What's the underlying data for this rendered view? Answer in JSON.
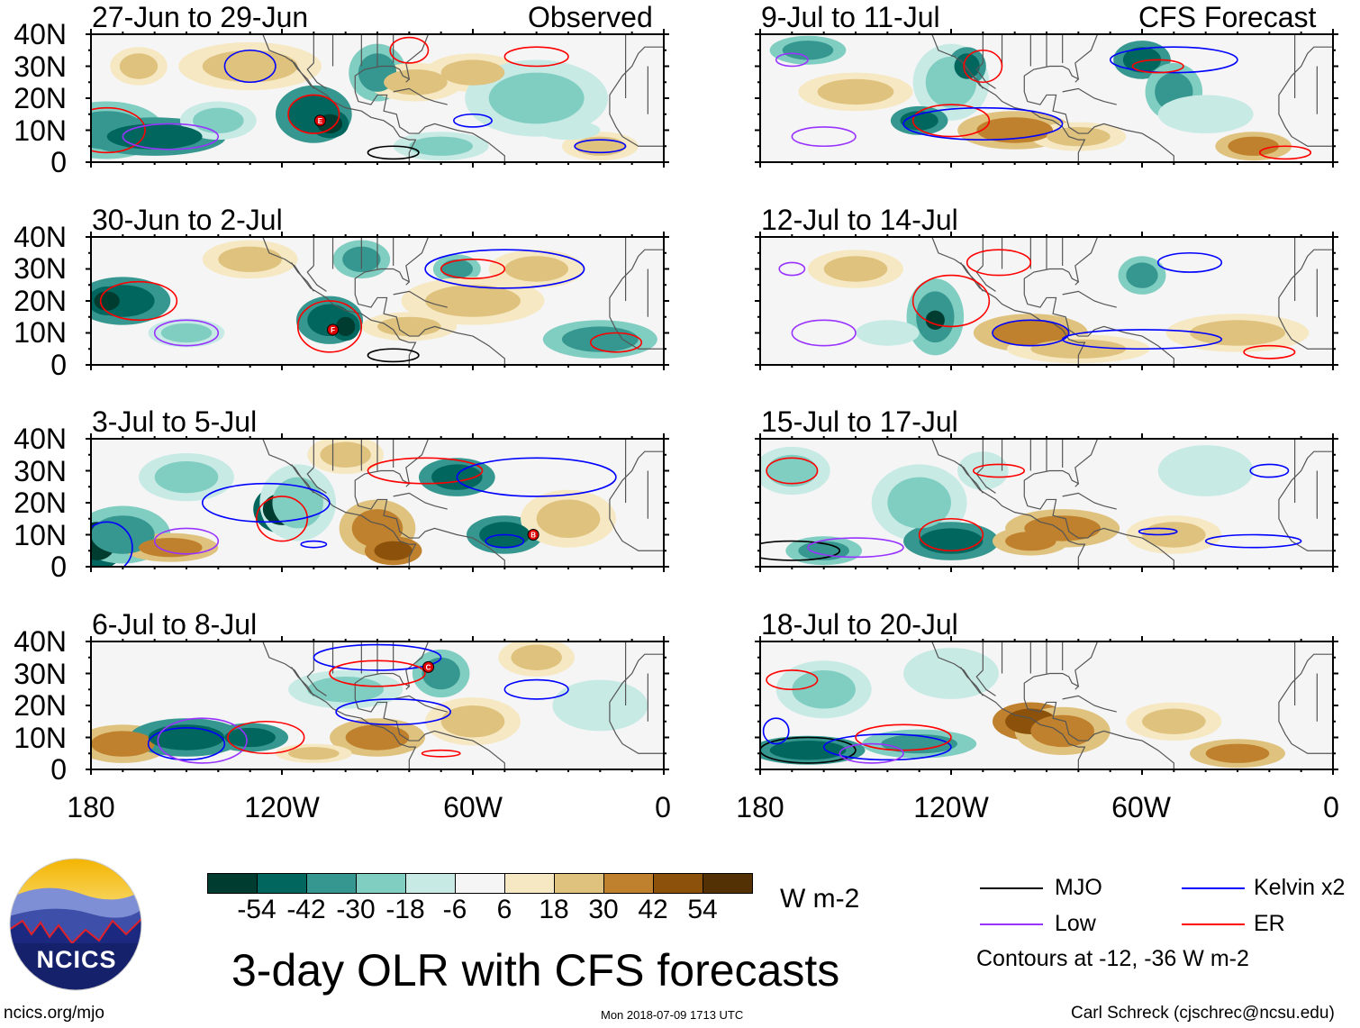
{
  "title": "3-day OLR with CFS forecasts",
  "observed_label": "Observed",
  "forecast_label": "CFS Forecast",
  "panels_left": [
    "27-Jun to 29-Jun",
    "30-Jun to 2-Jul",
    "3-Jul to 5-Jul",
    "6-Jul to 8-Jul"
  ],
  "panels_right": [
    "9-Jul to 11-Jul",
    "12-Jul to 14-Jul",
    "15-Jul to 17-Jul",
    "18-Jul to 20-Jul"
  ],
  "y_ticks": [
    "40N",
    "30N",
    "20N",
    "10N",
    "0"
  ],
  "x_ticks": [
    "180",
    "120W",
    "60W",
    "0"
  ],
  "storm_markers": [
    "E",
    "F",
    "B",
    "C"
  ],
  "colorbar": {
    "unit": "W m-2",
    "labels": [
      "-54",
      "-42",
      "-30",
      "-18",
      "-6",
      "6",
      "18",
      "30",
      "42",
      "54"
    ],
    "colors": [
      "#003c30",
      "#01665e",
      "#35978f",
      "#80cdc1",
      "#c7eae5",
      "#f5f5f5",
      "#f6e8c3",
      "#dfc27d",
      "#bf812d",
      "#8c510a",
      "#543005"
    ]
  },
  "legend": {
    "items": [
      {
        "label": "MJO",
        "color": "#000000"
      },
      {
        "label": "Kelvin x2",
        "color": "#0000ff"
      },
      {
        "label": "Low",
        "color": "#9933ff"
      },
      {
        "label": "ER",
        "color": "#ff0000"
      }
    ],
    "note": "Contours at -12, -36 W m-2"
  },
  "logo_text": "NCICS",
  "footer": {
    "url": "ncics.org/mjo",
    "timestamp": "Mon 2018-07-09 1713 UTC",
    "credit": "Carl Schreck (cjschrec@ncsu.edu)"
  }
}
